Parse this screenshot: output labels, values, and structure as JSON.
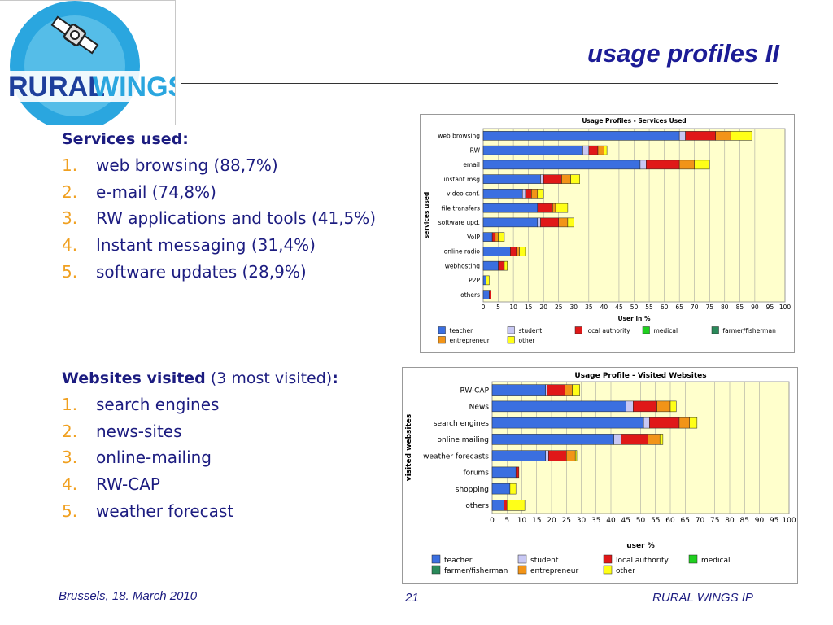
{
  "logo": {
    "text_rural": "RURAL",
    "text_wings": "WINGS"
  },
  "title": "usage profiles II",
  "services": {
    "heading": "Services used:",
    "items": [
      {
        "num": "1.",
        "text": "web browsing (88,7%)"
      },
      {
        "num": "2.",
        "text": "e-mail (74,8%)"
      },
      {
        "num": "3.",
        "text": "RW applications and tools (41,5%)"
      },
      {
        "num": "4.",
        "text": "Instant messaging (31,4%)"
      },
      {
        "num": "5.",
        "text": "software updates (28,9%)"
      }
    ]
  },
  "websites": {
    "heading_bold": "Websites visited",
    "heading_rest": " (3 most visited)",
    "heading_colon": ":",
    "items": [
      {
        "num": "1.",
        "text": "search engines"
      },
      {
        "num": "2.",
        "text": "news-sites"
      },
      {
        "num": "3.",
        "text": "online-mailing"
      },
      {
        "num": "4.",
        "text": "RW-CAP"
      },
      {
        "num": "5.",
        "text": "weather forecast"
      }
    ]
  },
  "footer": {
    "left": "Brussels, 18. March 2010",
    "center": "21",
    "right": "RURAL WINGS IP"
  },
  "chart_data": [
    {
      "type": "bar",
      "orientation": "horizontal",
      "stacked": true,
      "title": "Usage Profiles - Services Used",
      "xlabel": "User in %",
      "ylabel": "services used",
      "xlim": [
        0,
        100
      ],
      "xticks": [
        0,
        5,
        10,
        15,
        20,
        25,
        30,
        35,
        40,
        45,
        50,
        55,
        60,
        65,
        70,
        75,
        80,
        85,
        90,
        95,
        100
      ],
      "grid": true,
      "legend_position": "bottom",
      "categories": [
        "web browsing",
        "RW",
        "email",
        "instant msg",
        "video conf.",
        "file transfers",
        "software upd.",
        "VoIP",
        "online radio",
        "webhosting",
        "P2P",
        "others"
      ],
      "series": [
        {
          "name": "teacher",
          "color": "#3b6fe0",
          "values": [
            65,
            33,
            52,
            19,
            13,
            18,
            18,
            3,
            9,
            5,
            1,
            2
          ]
        },
        {
          "name": "student",
          "color": "#c8c8f4",
          "values": [
            2,
            2,
            2,
            1,
            1,
            0,
            1,
            0,
            0,
            0,
            0,
            0
          ]
        },
        {
          "name": "local authority",
          "color": "#e01818",
          "values": [
            10,
            3,
            11,
            6,
            2,
            5,
            6,
            1,
            2,
            2,
            0,
            0.5
          ]
        },
        {
          "name": "medical",
          "color": "#20d020",
          "values": [
            0,
            0,
            0,
            0,
            0,
            0,
            0,
            0,
            0,
            0,
            0,
            0
          ]
        },
        {
          "name": "farmer/fisherman",
          "color": "#2a8a5a",
          "values": [
            0,
            0,
            0,
            0,
            0,
            0,
            0,
            0,
            0,
            0,
            0,
            0
          ]
        },
        {
          "name": "entrepreneur",
          "color": "#f29418",
          "values": [
            5,
            2,
            5,
            3,
            2,
            1,
            3,
            1,
            1,
            0,
            0,
            0
          ]
        },
        {
          "name": "other",
          "color": "#ffff18",
          "values": [
            7,
            1,
            5,
            3,
            2,
            4,
            2,
            2,
            2,
            1,
            1,
            0
          ]
        }
      ]
    },
    {
      "type": "bar",
      "orientation": "horizontal",
      "stacked": true,
      "title": "Usage Profile - Visited Websites",
      "xlabel": "user %",
      "ylabel": "visited websites",
      "xlim": [
        0,
        100
      ],
      "xticks": [
        0,
        5,
        10,
        15,
        20,
        25,
        30,
        35,
        40,
        45,
        50,
        55,
        60,
        65,
        70,
        75,
        80,
        85,
        90,
        95,
        100
      ],
      "grid": true,
      "legend_position": "bottom",
      "categories": [
        "RW-CAP",
        "News",
        "search engines",
        "online mailing",
        "weather forecasts",
        "forums",
        "shopping",
        "others"
      ],
      "series": [
        {
          "name": "teacher",
          "color": "#3b6fe0",
          "values": [
            18,
            45,
            51,
            41,
            18,
            8,
            6,
            4
          ]
        },
        {
          "name": "student",
          "color": "#c8c8f4",
          "values": [
            0.5,
            2.5,
            2,
            2.5,
            1,
            0,
            0,
            0
          ]
        },
        {
          "name": "local authority",
          "color": "#e01818",
          "values": [
            6,
            8,
            10,
            9,
            6,
            1,
            0,
            1
          ]
        },
        {
          "name": "medical",
          "color": "#20d020",
          "values": [
            0,
            0,
            0,
            0,
            0,
            0,
            0,
            0
          ]
        },
        {
          "name": "farmer/fisherman",
          "color": "#2a8a5a",
          "values": [
            0,
            0,
            0,
            0,
            0,
            0,
            0,
            0
          ]
        },
        {
          "name": "entrepreneur",
          "color": "#f29418",
          "values": [
            2.5,
            4.5,
            3.5,
            4,
            3,
            0,
            0,
            0
          ]
        },
        {
          "name": "other",
          "color": "#ffff18",
          "values": [
            2.5,
            2,
            2.5,
            1,
            0.5,
            0,
            2,
            6
          ]
        }
      ]
    }
  ]
}
